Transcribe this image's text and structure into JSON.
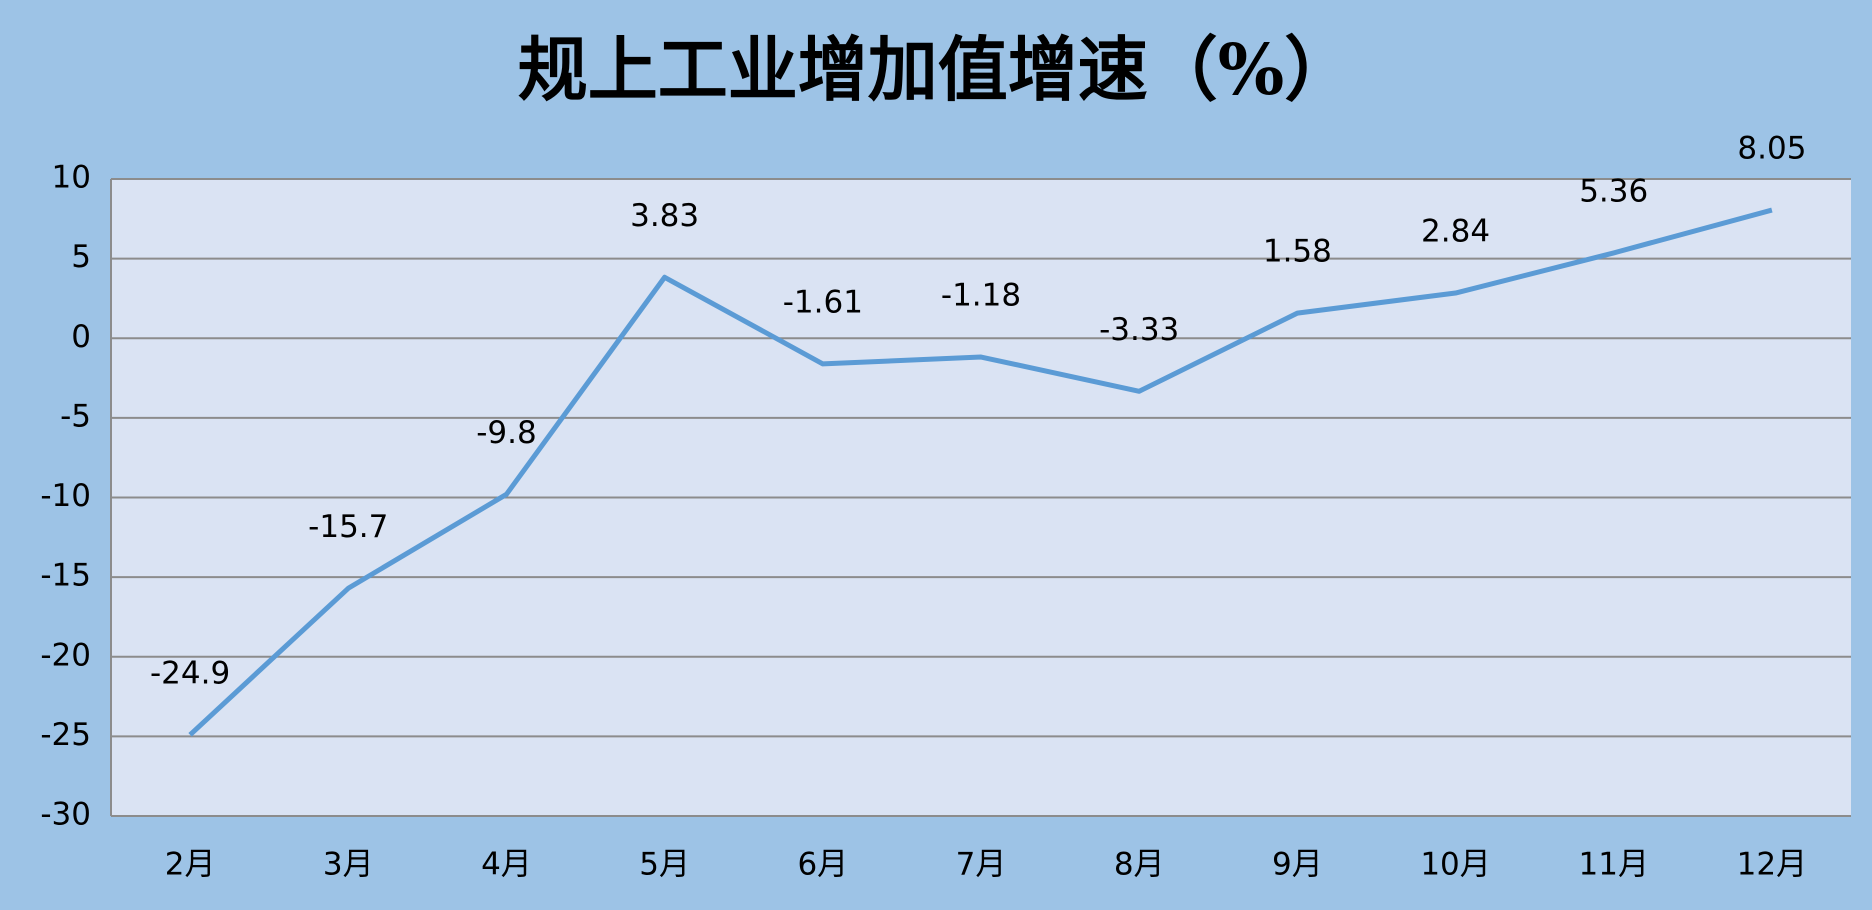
{
  "chart_data": {
    "type": "line",
    "title": "规上工业增加值增速（%）",
    "categories": [
      "2月",
      "3月",
      "4月",
      "5月",
      "6月",
      "7月",
      "8月",
      "9月",
      "10月",
      "11月",
      "12月"
    ],
    "values": [
      -24.9,
      -15.7,
      -9.8,
      3.83,
      -1.61,
      -1.18,
      -3.33,
      1.58,
      2.84,
      5.36,
      8.05
    ],
    "color": "#5b9bd5",
    "ylim": [
      -30,
      10
    ],
    "yticks": [
      -30,
      -25,
      -20,
      -15,
      -10,
      -5,
      0,
      5,
      10
    ],
    "grid": true
  }
}
